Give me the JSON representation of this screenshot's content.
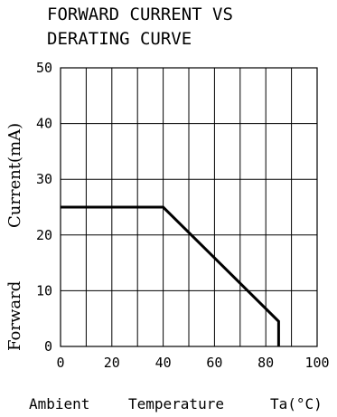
{
  "chart_data": {
    "type": "line",
    "title_lines": [
      "FORWARD CURRENT VS",
      "DERATING CURVE"
    ],
    "ylabel_word1": "Forward",
    "ylabel_word2": "Current(mA)",
    "xlabel_parts": [
      "Ambient",
      "Temperature",
      "Ta(°C)"
    ],
    "xlim": [
      0,
      100
    ],
    "ylim": [
      0,
      50
    ],
    "xticks": [
      0,
      20,
      40,
      60,
      80,
      100
    ],
    "yticks": [
      0,
      10,
      20,
      30,
      40,
      50
    ],
    "x_gridlines": [
      10,
      20,
      30,
      40,
      50,
      60,
      70,
      80,
      90
    ],
    "y_gridlines": [
      10,
      20,
      30,
      40
    ],
    "grid": true,
    "series": [
      {
        "x": [
          0,
          40,
          85,
          85
        ],
        "y": [
          25,
          25,
          4.5,
          0
        ]
      }
    ]
  }
}
